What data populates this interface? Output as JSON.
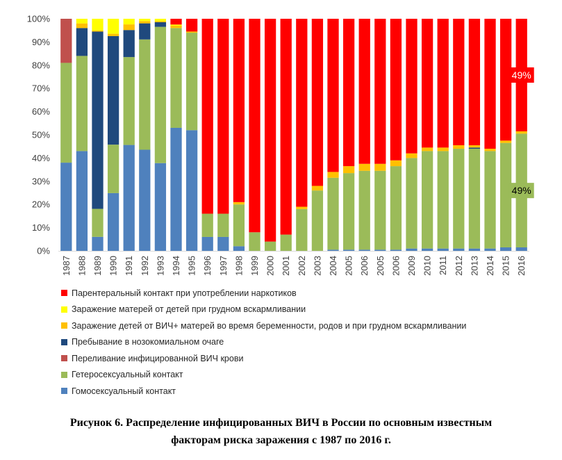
{
  "chart_data": {
    "type": "bar",
    "stacked": true,
    "normalized": true,
    "ylim": [
      0,
      100
    ],
    "ytick_labels": [
      "0%",
      "10%",
      "20%",
      "30%",
      "40%",
      "50%",
      "60%",
      "70%",
      "80%",
      "90%",
      "100%"
    ],
    "categories": [
      "1987",
      "1988",
      "1989",
      "1990",
      "1991",
      "1992",
      "1993",
      "1994",
      "1995",
      "1996",
      "1997",
      "1998",
      "1999",
      "2000",
      "2001",
      "2002",
      "2003",
      "2004",
      "2005",
      "2006",
      "2005",
      "2006",
      "2009",
      "2010",
      "2011",
      "2012",
      "2013",
      "2014",
      "2015",
      "2016"
    ],
    "series": [
      {
        "name": "Гомосексуальный контакт",
        "color": "#4f81bd",
        "values": [
          38,
          43,
          6,
          25,
          47,
          44,
          38,
          53,
          52,
          6,
          6,
          2,
          0,
          0,
          0,
          0,
          0,
          0.5,
          0.5,
          0.5,
          0.5,
          0.5,
          1,
          1,
          1,
          1,
          1,
          1,
          1.5,
          1.5
        ]
      },
      {
        "name": "Гетеросексуальный контакт",
        "color": "#9bbb59",
        "values": [
          43,
          41,
          12,
          21,
          39,
          48,
          59,
          43,
          42,
          10,
          10,
          18,
          8,
          4,
          7,
          18,
          26,
          31,
          33,
          34,
          34,
          36,
          39,
          42,
          42,
          43,
          43,
          42,
          45,
          49
        ]
      },
      {
        "name": "Переливание  инфицированной ВИЧ крови",
        "color": "#c0504d",
        "values": [
          19,
          0,
          0,
          0,
          0,
          0,
          0,
          0,
          0,
          0,
          0,
          0,
          0,
          0,
          0,
          0,
          0,
          0,
          0,
          0,
          0,
          0,
          0,
          0,
          0,
          0,
          0,
          0,
          0,
          0
        ]
      },
      {
        "name": "Пребывание в нозокомиальном очаге",
        "color": "#1f497d",
        "values": [
          0,
          12,
          76,
          47,
          12,
          7,
          2,
          0,
          0,
          0,
          0,
          0,
          0,
          0,
          0,
          0,
          0,
          0,
          0,
          0,
          0,
          0,
          0,
          0,
          0,
          0,
          0.5,
          0,
          0,
          0
        ]
      },
      {
        "name": "Заражение детей от ВИЧ+ матерей во время беременности, родов и при грудном вскармливании",
        "color": "#ffc000",
        "values": [
          0,
          2,
          0.5,
          1,
          2.5,
          1,
          0.5,
          1,
          0.5,
          0,
          0,
          1,
          0,
          0,
          0,
          1,
          2,
          2.5,
          3,
          3,
          3,
          2.5,
          2,
          1.5,
          1.5,
          1.5,
          1,
          1,
          1,
          1
        ]
      },
      {
        "name": "Заражение матерей от детей при грудном вскармливании",
        "color": "#ffff00",
        "values": [
          0,
          2,
          5,
          6.5,
          2.5,
          1,
          1,
          0.5,
          0,
          0,
          0,
          0,
          0,
          0,
          0,
          0,
          0,
          0,
          0,
          0,
          0,
          0,
          0,
          0,
          0,
          0,
          0,
          0,
          0,
          0
        ]
      },
      {
        "name": "Парентеральный контакт при употреблении наркотиков",
        "color": "#ff0000",
        "values": [
          0,
          0,
          0,
          0,
          0,
          0,
          0,
          2.5,
          5.5,
          84,
          84,
          79,
          92,
          96,
          93,
          81,
          72,
          66,
          63.5,
          62.5,
          62.5,
          61,
          58,
          55.5,
          55.5,
          54.5,
          54.5,
          56,
          52.5,
          48.5
        ]
      }
    ],
    "annotations": [
      {
        "text": "49%",
        "series": "Парентеральный контакт при употреблении наркотиков",
        "category_index": 29,
        "bg": "#ff0000",
        "fg": "#ffffff"
      },
      {
        "text": "49%",
        "series": "Гетеросексуальный контакт",
        "category_index": 29,
        "bg": "#9bbb59",
        "fg": "#000000"
      }
    ],
    "legend_order": [
      "Парентеральный контакт при употреблении наркотиков",
      "Заражение матерей от детей при грудном вскармливании",
      "Заражение детей от ВИЧ+ матерей во время беременности, родов и при грудном вскармливании",
      "Пребывание в нозокомиальном очаге",
      "Переливание  инфицированной ВИЧ крови",
      "Гетеросексуальный контакт",
      "Гомосексуальный контакт"
    ],
    "legend_position": "bottom-left",
    "grid": false
  },
  "caption": {
    "line1": "Рисунок 6. Распределение инфицированных ВИЧ в России по основным известным",
    "line2": "факторам риска заражения с 1987 по 2016 г."
  }
}
